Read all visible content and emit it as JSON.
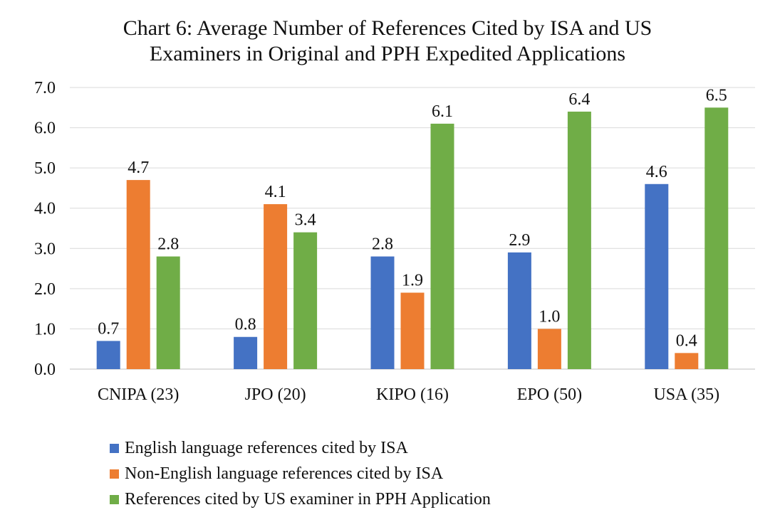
{
  "chart_data": {
    "type": "bar",
    "title": "Chart 6: Average Number of References Cited by ISA and US Examiners in Original and PPH Expedited Applications",
    "title_lines": [
      "Chart 6: Average Number of References Cited by ISA and US",
      "Examiners in Original and PPH Expedited Applications"
    ],
    "categories": [
      "CNIPA (23)",
      "JPO (20)",
      "KIPO (16)",
      "EPO (50)",
      "USA (35)"
    ],
    "series": [
      {
        "name": "English language references cited by ISA",
        "color": "#4472C4",
        "values": [
          0.7,
          0.8,
          2.8,
          2.9,
          4.6
        ]
      },
      {
        "name": "Non-English language references cited by ISA",
        "color": "#ED7D31",
        "values": [
          4.7,
          4.1,
          1.9,
          1.0,
          0.4
        ]
      },
      {
        "name": "References cited by US examiner in PPH Application",
        "color": "#70AD47",
        "values": [
          2.8,
          3.4,
          6.1,
          6.4,
          6.5
        ]
      }
    ],
    "ylim": [
      0,
      7
    ],
    "yticks": [
      "0.0",
      "1.0",
      "2.0",
      "3.0",
      "4.0",
      "5.0",
      "6.0",
      "7.0"
    ],
    "data_labels": true,
    "grid": true,
    "legend_position": "bottom-left",
    "xlabel": "",
    "ylabel": ""
  }
}
